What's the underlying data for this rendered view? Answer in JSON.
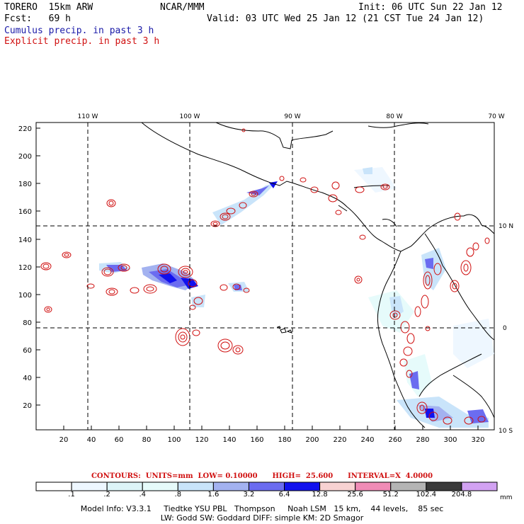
{
  "header": {
    "model": "TORERO  15km ARW",
    "org": "NCAR/MMM",
    "init": "Init: 06 UTC Sun 22 Jan 12",
    "fcst": "Fcst:   69 h",
    "valid": "Valid: 03 UTC Wed 25 Jan 12 (21 CST Tue 24 Jan 12)",
    "cumulus": "Cumulus precip. in past 3 h",
    "explicit": "Explicit precip. in past 3 h"
  },
  "map": {
    "top_lon_labels": [
      "110 W",
      "100 W",
      "90 W",
      "80 W",
      "70 W"
    ],
    "right_lat_labels": [
      "10 N",
      "0",
      "10 S"
    ],
    "left_ticks": [
      "220",
      "200",
      "180",
      "160",
      "140",
      "120",
      "100",
      "80",
      "60",
      "40",
      "20"
    ],
    "bottom_ticks": [
      "20",
      "40",
      "60",
      "80",
      "100",
      "120",
      "140",
      "160",
      "180",
      "200",
      "220",
      "240",
      "260",
      "280",
      "300",
      "320"
    ]
  },
  "contours": {
    "text": "CONTOURS:  UNITS=mm  LOW= 0.10000      HIGH=  25.600      INTERVAL=X  4.0000"
  },
  "colorbar": {
    "labels": [
      ".1",
      ".2",
      ".4",
      ".8",
      "1.6",
      "3.2",
      "6.4",
      "12.8",
      "25.6",
      "51.2",
      "102.4",
      "204.8"
    ],
    "unit": "mm",
    "colors": [
      "#ffffff",
      "#eef7ff",
      "#ddf4f8",
      "#e6fbfb",
      "#c9e4fa",
      "#a3b2f0",
      "#6b6cf0",
      "#1111ee",
      "#f8d2d2",
      "#f08cb6",
      "#b4b4b4",
      "#3a3a3a",
      "#d2a2f2"
    ]
  },
  "footer": {
    "line1": "Model Info: V3.3.1     Tiedtke YSU PBL   Thompson     Noah LSM   15 km,    44 levels,    85 sec",
    "line2": "LW: Godd SW: Goddard DIFF: simple KM: 2D Smagor"
  }
}
